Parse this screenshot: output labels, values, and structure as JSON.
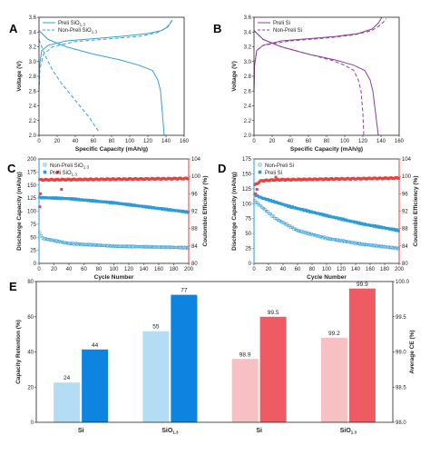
{
  "chart_data": [
    {
      "panel": "A",
      "type": "line",
      "xlabel": "Specific Capacity (mAh/g)",
      "ylabel": "Voltage (V)",
      "xlim": [
        0,
        160
      ],
      "ylim": [
        2.0,
        3.6
      ],
      "xticks": [
        "0",
        "20",
        "40",
        "60",
        "80",
        "100",
        "120",
        "140",
        "160"
      ],
      "yticks": [
        "2.0",
        "2.2",
        "2.4",
        "2.6",
        "2.8",
        "3.0",
        "3.2",
        "3.4",
        "3.6"
      ],
      "color": "#3a9fd0",
      "legend": {
        "position": "top-left"
      },
      "series": [
        {
          "name": "Preli SiO",
          "subscript": "1.3",
          "style": "solid",
          "charge": [
            [
              0,
              2.6
            ],
            [
              0.6,
              2.95
            ],
            [
              3,
              3.15
            ],
            [
              10,
              3.22
            ],
            [
              30,
              3.28
            ],
            [
              60,
              3.31
            ],
            [
              90,
              3.34
            ],
            [
              120,
              3.38
            ],
            [
              135,
              3.42
            ],
            [
              142,
              3.47
            ],
            [
              147,
              3.56
            ]
          ],
          "discharge": [
            [
              0,
              3.42
            ],
            [
              10,
              3.3
            ],
            [
              30,
              3.2
            ],
            [
              60,
              3.1
            ],
            [
              90,
              3.02
            ],
            [
              110,
              2.95
            ],
            [
              125,
              2.88
            ],
            [
              131,
              2.75
            ],
            [
              134,
              2.6
            ],
            [
              136,
              2.3
            ],
            [
              138,
              2.0
            ]
          ]
        },
        {
          "name": "Non-Preli SiO",
          "subscript": "1.3",
          "style": "dashed",
          "charge": [
            [
              0,
              2.6
            ],
            [
              1,
              2.9
            ],
            [
              5,
              3.1
            ],
            [
              15,
              3.2
            ],
            [
              40,
              3.27
            ],
            [
              80,
              3.31
            ],
            [
              110,
              3.34
            ],
            [
              130,
              3.39
            ],
            [
              140,
              3.45
            ],
            [
              145,
              3.53
            ],
            [
              148,
              3.58
            ]
          ],
          "discharge": [
            [
              0,
              3.3
            ],
            [
              3,
              3.2
            ],
            [
              8,
              3.05
            ],
            [
              15,
              2.88
            ],
            [
              25,
              2.7
            ],
            [
              35,
              2.55
            ],
            [
              45,
              2.4
            ],
            [
              55,
              2.25
            ],
            [
              62,
              2.12
            ],
            [
              66,
              2.05
            ]
          ]
        }
      ]
    },
    {
      "panel": "B",
      "type": "line",
      "xlabel": "Specific Capacity (mAh/g)",
      "ylabel": "Voltage (V)",
      "xlim": [
        0,
        160
      ],
      "ylim": [
        2.0,
        3.6
      ],
      "xticks": [
        "0",
        "20",
        "40",
        "60",
        "80",
        "100",
        "120",
        "140",
        "160"
      ],
      "yticks": [
        "2.0",
        "2.2",
        "2.4",
        "2.6",
        "2.8",
        "3.0",
        "3.2",
        "3.4",
        "3.6"
      ],
      "color": "#8b3f9c",
      "legend": {
        "position": "top-left"
      },
      "series": [
        {
          "name": "Preli Si",
          "style": "solid",
          "charge": [
            [
              0,
              2.6
            ],
            [
              0.6,
              2.95
            ],
            [
              3,
              3.15
            ],
            [
              10,
              3.22
            ],
            [
              30,
              3.28
            ],
            [
              60,
              3.31
            ],
            [
              90,
              3.34
            ],
            [
              115,
              3.38
            ],
            [
              130,
              3.44
            ],
            [
              137,
              3.52
            ],
            [
              141,
              3.6
            ]
          ],
          "discharge": [
            [
              0,
              3.42
            ],
            [
              10,
              3.3
            ],
            [
              30,
              3.2
            ],
            [
              60,
              3.1
            ],
            [
              90,
              3.02
            ],
            [
              110,
              2.95
            ],
            [
              122,
              2.88
            ],
            [
              128,
              2.75
            ],
            [
              131,
              2.6
            ],
            [
              134,
              2.3
            ],
            [
              137,
              2.0
            ]
          ]
        },
        {
          "name": "Non-Preli Si",
          "style": "dashed",
          "charge": [
            [
              0,
              2.6
            ],
            [
              0.6,
              2.95
            ],
            [
              3,
              3.15
            ],
            [
              10,
              3.22
            ],
            [
              40,
              3.28
            ],
            [
              80,
              3.32
            ],
            [
              110,
              3.36
            ],
            [
              130,
              3.42
            ],
            [
              140,
              3.5
            ],
            [
              146,
              3.58
            ]
          ],
          "discharge": [
            [
              0,
              3.42
            ],
            [
              10,
              3.3
            ],
            [
              30,
              3.2
            ],
            [
              60,
              3.1
            ],
            [
              85,
              3.02
            ],
            [
              100,
              2.95
            ],
            [
              110,
              2.88
            ],
            [
              115,
              2.75
            ],
            [
              118,
              2.6
            ],
            [
              120,
              2.3
            ],
            [
              121,
              2.0
            ]
          ]
        }
      ]
    },
    {
      "panel": "C",
      "type": "scatter",
      "xlabel": "Cycle Number",
      "ylabel": "Discharge Capacity (mAh/g)",
      "ylabel_right": "Coulombic Efficiency (%)",
      "xlim": [
        0,
        200
      ],
      "ylim": [
        0,
        200
      ],
      "ylim_right": [
        80,
        104
      ],
      "xticks": [
        "0",
        "20",
        "40",
        "60",
        "80",
        "100",
        "120",
        "140",
        "160",
        "180",
        "200"
      ],
      "yticks": [
        "0",
        "25",
        "50",
        "75",
        "100",
        "125",
        "150",
        "175",
        "200"
      ],
      "yticks_right": [
        "80",
        "84",
        "88",
        "92",
        "96",
        "100",
        "104"
      ],
      "left_color": "#2d9bd8",
      "right_color": "#e8413e",
      "legend": {
        "position": "top-left"
      },
      "series": [
        {
          "name": "Non-Preli SiO",
          "subscript": "1.3",
          "marker": "open-square",
          "axis": "left",
          "capacity_knots": [
            [
              1,
              58
            ],
            [
              5,
              48
            ],
            [
              40,
              38
            ],
            [
              100,
              33
            ],
            [
              200,
              30
            ]
          ]
        },
        {
          "name": "Preli SiO",
          "subscript": "1.3",
          "marker": "filled-square",
          "axis": "left",
          "capacity_knots": [
            [
              1,
              126
            ],
            [
              40,
              124
            ],
            [
              100,
              116
            ],
            [
              200,
              98
            ]
          ]
        },
        {
          "name": "Coulombic Efficiency",
          "marker": "filled-square",
          "axis": "right",
          "efficiency_knots": [
            [
              3,
              99.2
            ],
            [
              200,
              99.5
            ]
          ],
          "outliers": [
            [
              1,
              93
            ],
            [
              2,
              96
            ],
            [
              25,
              101
            ],
            [
              30,
              97
            ]
          ]
        }
      ]
    },
    {
      "panel": "D",
      "type": "scatter",
      "xlabel": "Cycle Number",
      "ylabel": "Discharge Capacity (mAh/g)",
      "ylabel_right": "Coulombic Efficiency (%)",
      "xlim": [
        0,
        200
      ],
      "ylim": [
        0,
        175
      ],
      "ylim_right": [
        80,
        104
      ],
      "xticks": [
        "0",
        "20",
        "40",
        "60",
        "80",
        "100",
        "120",
        "140",
        "160",
        "180",
        "200"
      ],
      "yticks": [
        "0",
        "25",
        "50",
        "75",
        "100",
        "125",
        "150",
        "175"
      ],
      "yticks_right": [
        "80",
        "84",
        "88",
        "92",
        "96",
        "100",
        "104"
      ],
      "left_color": "#2d9bd8",
      "right_color": "#e8413e",
      "legend": {
        "position": "top-left"
      },
      "series": [
        {
          "name": "Non-Preli Si",
          "marker": "open-square",
          "axis": "left",
          "capacity_knots": [
            [
              1,
              105
            ],
            [
              10,
              95
            ],
            [
              30,
              75
            ],
            [
              60,
              55
            ],
            [
              100,
              42
            ],
            [
              150,
              32
            ],
            [
              200,
              25
            ]
          ]
        },
        {
          "name": "Preli Si",
          "marker": "filled-square",
          "axis": "left",
          "capacity_knots": [
            [
              1,
              115
            ],
            [
              10,
              110
            ],
            [
              50,
              95
            ],
            [
              100,
              80
            ],
            [
              150,
              66
            ],
            [
              200,
              55
            ]
          ]
        },
        {
          "name": "Coulombic Efficiency",
          "marker": "filled-square",
          "axis": "right",
          "efficiency_knots": [
            [
              1,
              98
            ],
            [
              10,
              99
            ],
            [
              30,
              99.2
            ],
            [
              200,
              99.6
            ]
          ],
          "outliers": [
            [
              2,
              96
            ],
            [
              4,
              97
            ],
            [
              30,
              99.8
            ]
          ]
        }
      ]
    },
    {
      "panel": "E",
      "type": "bar",
      "ylabel": "Capacity Retention (%)",
      "ylabel_right": "Average CE (%)",
      "ylim": [
        0,
        85
      ],
      "ylim_right": [
        98.0,
        100.0
      ],
      "yticks": [
        "0",
        "20",
        "40",
        "60",
        "80"
      ],
      "yticks_right": [
        "98.0",
        "98.5",
        "99.0",
        "99.5",
        "100.0"
      ],
      "groups": [
        {
          "category": "Si",
          "axis": "left",
          "bars": [
            {
              "value": 24,
              "label": "24",
              "color": "#b5dcf5"
            },
            {
              "value": 44,
              "label": "44",
              "color": "#0d85e0"
            }
          ]
        },
        {
          "category": "SiO",
          "subscript": "1.3",
          "axis": "left",
          "bars": [
            {
              "value": 55,
              "label": "55",
              "color": "#b5dcf5"
            },
            {
              "value": 77,
              "label": "77",
              "color": "#0d85e0"
            }
          ]
        },
        {
          "category": "Si",
          "axis": "right",
          "bars": [
            {
              "value": 98.9,
              "label": "98.9",
              "color": "#f7c0c3"
            },
            {
              "value": 99.5,
              "label": "99.5",
              "color": "#ee5b62"
            }
          ]
        },
        {
          "category": "SiO",
          "subscript": "1.3",
          "axis": "right",
          "bars": [
            {
              "value": 99.2,
              "label": "99.2",
              "color": "#f7c0c3"
            },
            {
              "value": 99.9,
              "label": "99.9",
              "color": "#ee5b62"
            }
          ]
        }
      ]
    }
  ]
}
